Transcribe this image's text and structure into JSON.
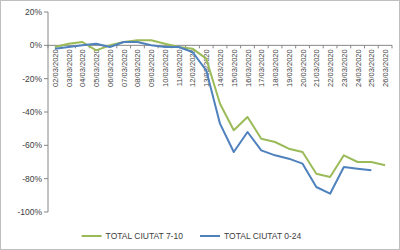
{
  "chart_data": {
    "type": "line",
    "categories": [
      "02/03/2020",
      "03/03/2020",
      "04/03/2020",
      "05/03/2020",
      "06/03/2020",
      "07/03/2020",
      "08/03/2020",
      "09/03/2020",
      "10/03/2020",
      "11/03/2020",
      "12/03/2020",
      "13/03/2020",
      "14/03/2020",
      "15/03/2020",
      "16/03/2020",
      "17/03/2020",
      "18/03/2020",
      "19/03/2020",
      "20/03/2020",
      "21/03/2020",
      "22/03/2020",
      "23/03/2020",
      "24/03/2020",
      "25/03/2020",
      "26/03/2020"
    ],
    "series": [
      {
        "name": "TOTAL CIUTAT 7-10",
        "color": "#9bbb59",
        "values": [
          -1,
          1,
          2,
          -3,
          0,
          2,
          3,
          3,
          1,
          -1,
          -2,
          -8,
          -35,
          -51,
          -43,
          -56,
          -58,
          -62,
          -64,
          -77,
          -79,
          -66,
          -70,
          -70,
          -72
        ]
      },
      {
        "name": "TOTAL CIUTAT 0-24",
        "color": "#4f81bd",
        "values": [
          -2,
          -1,
          0,
          1,
          -1,
          2,
          2,
          0,
          -1,
          -1,
          -4,
          -15,
          -47,
          -64,
          -52,
          -63,
          -66,
          -68,
          -71,
          -85,
          -89,
          -73,
          -74,
          -75,
          null
        ]
      }
    ],
    "ylim": [
      -100,
      20
    ],
    "yticks": [
      {
        "value": -100,
        "label": "-100%"
      },
      {
        "value": -80,
        "label": "-80%"
      },
      {
        "value": -60,
        "label": "-60%"
      },
      {
        "value": -40,
        "label": "-40%"
      },
      {
        "value": -20,
        "label": "-20%"
      },
      {
        "value": 0,
        "label": "0%"
      },
      {
        "value": 20,
        "label": "20%"
      }
    ],
    "grid": false,
    "legend": "bottom"
  }
}
